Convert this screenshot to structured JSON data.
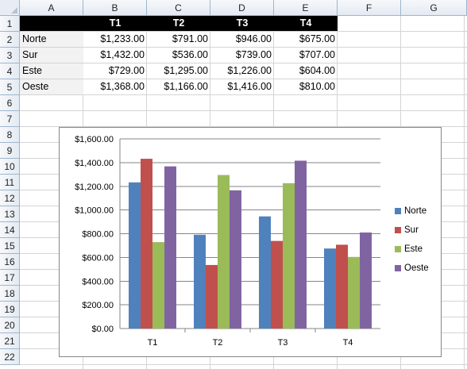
{
  "columns": [
    "A",
    "B",
    "C",
    "D",
    "E",
    "F",
    "G"
  ],
  "rows": [
    "1",
    "2",
    "3",
    "4",
    "5",
    "6",
    "7",
    "8",
    "9",
    "10",
    "11",
    "12",
    "13",
    "14",
    "15",
    "16",
    "17",
    "18",
    "19",
    "20",
    "21",
    "22"
  ],
  "table": {
    "headers": [
      "T1",
      "T2",
      "T3",
      "T4"
    ],
    "rows": [
      {
        "label": "Norte",
        "values": [
          "$1,233.00",
          "$791.00",
          "$946.00",
          "$675.00"
        ]
      },
      {
        "label": "Sur",
        "values": [
          "$1,432.00",
          "$536.00",
          "$739.00",
          "$707.00"
        ]
      },
      {
        "label": "Este",
        "values": [
          "$729.00",
          "$1,295.00",
          "$1,226.00",
          "$604.00"
        ]
      },
      {
        "label": "Oeste",
        "values": [
          "$1,368.00",
          "$1,166.00",
          "$1,416.00",
          "$810.00"
        ]
      }
    ]
  },
  "chart_data": {
    "type": "bar",
    "categories": [
      "T1",
      "T2",
      "T3",
      "T4"
    ],
    "series": [
      {
        "name": "Norte",
        "color": "#4f81bd",
        "values": [
          1233,
          791,
          946,
          675
        ]
      },
      {
        "name": "Sur",
        "color": "#c0504d",
        "values": [
          1432,
          536,
          739,
          707
        ]
      },
      {
        "name": "Este",
        "color": "#9bbb59",
        "values": [
          729,
          1295,
          1226,
          604
        ]
      },
      {
        "name": "Oeste",
        "color": "#8064a2",
        "values": [
          1368,
          1166,
          1416,
          810
        ]
      }
    ],
    "ylim": [
      0,
      1600
    ],
    "yticks": [
      "$0.00",
      "$200.00",
      "$400.00",
      "$600.00",
      "$800.00",
      "$1,000.00",
      "$1,200.00",
      "$1,400.00",
      "$1,600.00"
    ],
    "grid": true,
    "legend_position": "right"
  }
}
